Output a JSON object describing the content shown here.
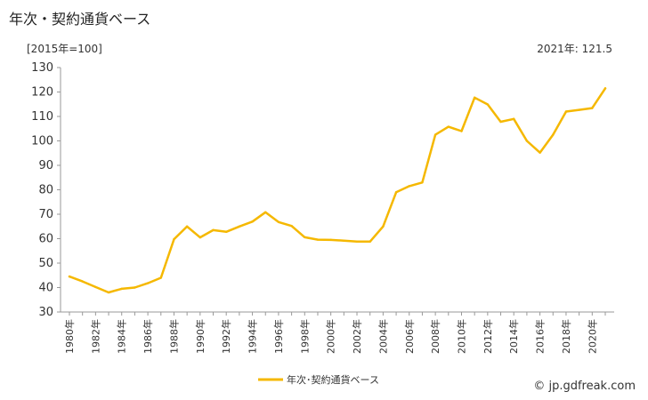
{
  "page": {
    "title": "年次・契約通貨ベース",
    "unit_label": "[2015年=100]",
    "latest_label": "2021年: 121.5",
    "credit": "© jp.gdfreak.com"
  },
  "colors": {
    "line": "#F5B800",
    "axis": "#999999",
    "grid": "#dddddd"
  },
  "chart_data": {
    "type": "line",
    "title": "年次・契約通貨ベース",
    "ylabel": "[2015年=100]",
    "ylim": [
      30,
      130
    ],
    "yticks": [
      30,
      40,
      50,
      60,
      70,
      80,
      90,
      100,
      110,
      120,
      130
    ],
    "x": [
      1980,
      1981,
      1982,
      1983,
      1984,
      1985,
      1986,
      1987,
      1988,
      1989,
      1990,
      1991,
      1992,
      1993,
      1994,
      1995,
      1996,
      1997,
      1998,
      1999,
      2000,
      2001,
      2002,
      2003,
      2004,
      2005,
      2006,
      2007,
      2008,
      2009,
      2010,
      2011,
      2012,
      2013,
      2014,
      2015,
      2016,
      2017,
      2018,
      2019,
      2020,
      2021
    ],
    "xtick_labels": [
      "1980年",
      "1982年",
      "1984年",
      "1986年",
      "1988年",
      "1990年",
      "1992年",
      "1994年",
      "1996年",
      "1998年",
      "2000年",
      "2002年",
      "2004年",
      "2006年",
      "2008年",
      "2010年",
      "2012年",
      "2014年",
      "2016年",
      "2018年",
      "2020年"
    ],
    "series": [
      {
        "name": "年次･契約通貨ベース",
        "values": [
          44.5,
          42.5,
          40.2,
          38.0,
          39.5,
          40.0,
          41.8,
          44.0,
          59.8,
          65.0,
          60.5,
          63.5,
          62.8,
          65.0,
          67.0,
          70.8,
          66.8,
          65.2,
          60.6,
          59.6,
          59.5,
          59.2,
          58.8,
          58.8,
          65.0,
          79.0,
          81.5,
          83.0,
          102.5,
          105.8,
          104.0,
          117.7,
          114.9,
          107.8,
          109.0,
          100.0,
          95.2,
          102.5,
          112.0,
          112.7,
          113.4,
          121.5
        ]
      }
    ],
    "legend": "bottom-center",
    "grid": false
  }
}
